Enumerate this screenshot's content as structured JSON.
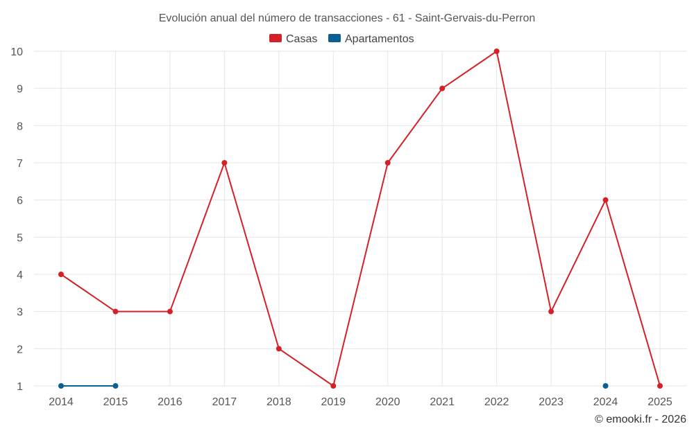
{
  "chart_data": {
    "type": "line",
    "title": "Evolución anual del número de transacciones - 61 - Saint-Gervais-du-Perron",
    "categories": [
      "2014",
      "2015",
      "2016",
      "2017",
      "2018",
      "2019",
      "2020",
      "2021",
      "2022",
      "2023",
      "2024",
      "2025"
    ],
    "series": [
      {
        "name": "Casas",
        "color": "#d42027",
        "values": [
          4,
          3,
          3,
          7,
          2,
          1,
          7,
          9,
          10,
          3,
          6,
          1
        ]
      },
      {
        "name": "Apartamentos",
        "color": "#0b5f95",
        "values": [
          1,
          1,
          null,
          null,
          null,
          null,
          null,
          null,
          null,
          null,
          1,
          null
        ]
      }
    ],
    "yticks": [
      "1",
      "2",
      "3",
      "4",
      "5",
      "6",
      "7",
      "8",
      "9",
      "10"
    ],
    "ylim": [
      1,
      10
    ],
    "xlabel": "",
    "ylabel": "",
    "grid": true,
    "legend_position": "top-center"
  },
  "credit": "© emooki.fr - 2026"
}
